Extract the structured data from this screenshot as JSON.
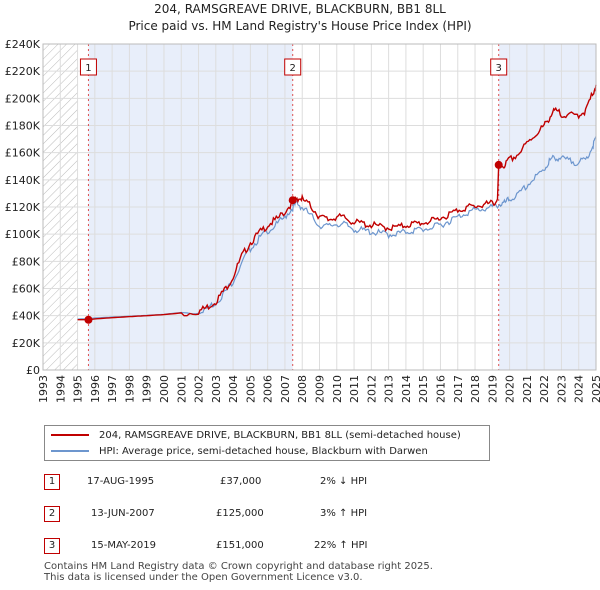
{
  "chart_data": {
    "type": "line",
    "title": "204, RAMSGREAVE DRIVE, BLACKBURN, BB1 8LL",
    "subtitle": "Price paid vs. HM Land Registry's House Price Index (HPI)",
    "xlim": [
      1993,
      2025
    ],
    "ylim": [
      0,
      240000
    ],
    "y_ticks": [
      0,
      20000,
      40000,
      60000,
      80000,
      100000,
      120000,
      140000,
      160000,
      180000,
      200000,
      220000,
      240000
    ],
    "y_tick_labels": [
      "£0",
      "£20K",
      "£40K",
      "£60K",
      "£80K",
      "£100K",
      "£120K",
      "£140K",
      "£160K",
      "£180K",
      "£200K",
      "£220K",
      "£240K"
    ],
    "x_ticks": [
      1993,
      1994,
      1995,
      1996,
      1997,
      1998,
      1999,
      2000,
      2001,
      2002,
      2003,
      2004,
      2005,
      2006,
      2007,
      2008,
      2009,
      2010,
      2011,
      2012,
      2013,
      2014,
      2015,
      2016,
      2017,
      2018,
      2019,
      2020,
      2021,
      2022,
      2023,
      2024,
      2025
    ],
    "x_tick_labels": [
      "1993",
      "1994",
      "1995",
      "1996",
      "1997",
      "1998",
      "1999",
      "2000",
      "2001",
      "2002",
      "2003",
      "2004",
      "2005",
      "2006",
      "2007",
      "2008",
      "2009",
      "2010",
      "2011",
      "2012",
      "2013",
      "2014",
      "2015",
      "2016",
      "2017",
      "2018",
      "2019",
      "2020",
      "2021",
      "2022",
      "2023",
      "2024",
      "2025"
    ],
    "hatched_until": 1995.0,
    "shaded_ranges": [
      [
        1995.63,
        2007.45
      ],
      [
        2019.37,
        2025
      ]
    ],
    "series": [
      {
        "name": "204, RAMSGREAVE DRIVE, BLACKBURN, BB1 8LL (semi-detached house)",
        "color": "#c00000",
        "x": [
          1995.0,
          1995.63,
          1996.0,
          1997.0,
          1998.0,
          1999.0,
          2000.0,
          2001.0,
          2002.0,
          2002.5,
          2003.0,
          2003.5,
          2004.0,
          2004.5,
          2005.0,
          2005.5,
          2006.0,
          2006.5,
          2007.0,
          2007.45,
          2007.7,
          2008.0,
          2008.5,
          2009.0,
          2009.5,
          2010.0,
          2010.5,
          2011.0,
          2011.5,
          2012.0,
          2012.5,
          2013.0,
          2013.5,
          2014.0,
          2014.5,
          2015.0,
          2015.5,
          2016.0,
          2016.5,
          2017.0,
          2017.5,
          2018.0,
          2018.5,
          2019.0,
          2019.3,
          2019.37,
          2019.7,
          2020.0,
          2020.5,
          2021.0,
          2021.5,
          2022.0,
          2022.3,
          2022.6,
          2023.0,
          2023.5,
          2024.0,
          2024.4,
          2024.8,
          2025.0
        ],
        "values": [
          37000,
          37000,
          37600,
          38500,
          39300,
          40000,
          40800,
          42000,
          44500,
          47500,
          52000,
          60000,
          70000,
          85000,
          95000,
          102000,
          108000,
          112000,
          118000,
          125000,
          128000,
          127000,
          122000,
          114000,
          112000,
          114000,
          113000,
          110000,
          109000,
          108000,
          107000,
          106000,
          106000,
          108000,
          109000,
          110000,
          111000,
          113000,
          116000,
          119000,
          121000,
          122000,
          123000,
          124000,
          126000,
          151000,
          152000,
          156000,
          160000,
          168000,
          175000,
          181000,
          187000,
          192000,
          190000,
          189000,
          189000,
          192000,
          205000,
          210000
        ]
      },
      {
        "name": "HPI: Average price, semi-detached house, Blackburn with Darwen",
        "color": "#6d96ce",
        "x": [
          1995.0,
          1995.63,
          1996.0,
          1997.0,
          1998.0,
          1999.0,
          2000.0,
          2001.0,
          2002.0,
          2002.5,
          2003.0,
          2003.5,
          2004.0,
          2004.5,
          2005.0,
          2005.5,
          2006.0,
          2006.5,
          2007.0,
          2007.45,
          2007.7,
          2008.0,
          2008.5,
          2009.0,
          2009.5,
          2010.0,
          2010.5,
          2011.0,
          2011.5,
          2012.0,
          2012.5,
          2013.0,
          2013.5,
          2014.0,
          2014.5,
          2015.0,
          2015.5,
          2016.0,
          2016.5,
          2017.0,
          2017.5,
          2018.0,
          2018.5,
          2019.0,
          2019.37,
          2019.7,
          2020.0,
          2020.5,
          2021.0,
          2021.5,
          2022.0,
          2022.3,
          2022.6,
          2023.0,
          2023.5,
          2024.0,
          2024.4,
          2024.8,
          2025.0
        ],
        "values": [
          37500,
          37800,
          38300,
          39000,
          39600,
          40200,
          41000,
          42300,
          44500,
          47000,
          51000,
          58000,
          67000,
          80000,
          91000,
          98000,
          104000,
          108000,
          114000,
          121000,
          124000,
          121000,
          115000,
          108000,
          107000,
          109000,
          108000,
          105000,
          104000,
          103000,
          102000,
          101000,
          102000,
          103000,
          104000,
          105000,
          106000,
          108000,
          111000,
          114000,
          117000,
          119000,
          120000,
          121000,
          123000,
          124000,
          127000,
          130000,
          137000,
          143000,
          149000,
          155000,
          158000,
          157000,
          155000,
          154000,
          156000,
          166000,
          172000
        ]
      }
    ],
    "markers": [
      {
        "label": "1",
        "x": 1995.63,
        "value": 37000
      },
      {
        "label": "2",
        "x": 2007.45,
        "value": 125000
      },
      {
        "label": "3",
        "x": 2019.37,
        "value": 151000
      }
    ],
    "legend_position": "below"
  },
  "legend": {
    "items": [
      {
        "label": "204, RAMSGREAVE DRIVE, BLACKBURN, BB1 8LL (semi-detached house)",
        "color": "#c00000"
      },
      {
        "label": "HPI: Average price, semi-detached house, Blackburn with Darwen",
        "color": "#6d96ce"
      }
    ]
  },
  "transactions": [
    {
      "num": "1",
      "date": "17-AUG-1995",
      "price": "£37,000",
      "hpi": "2% ↓ HPI"
    },
    {
      "num": "2",
      "date": "13-JUN-2007",
      "price": "£125,000",
      "hpi": "3% ↑ HPI"
    },
    {
      "num": "3",
      "date": "15-MAY-2019",
      "price": "£151,000",
      "hpi": "22% ↑ HPI"
    }
  ],
  "footer": {
    "line1": "Contains HM Land Registry data © Crown copyright and database right 2025.",
    "line2": "This data is licensed under the Open Government Licence v3.0."
  }
}
